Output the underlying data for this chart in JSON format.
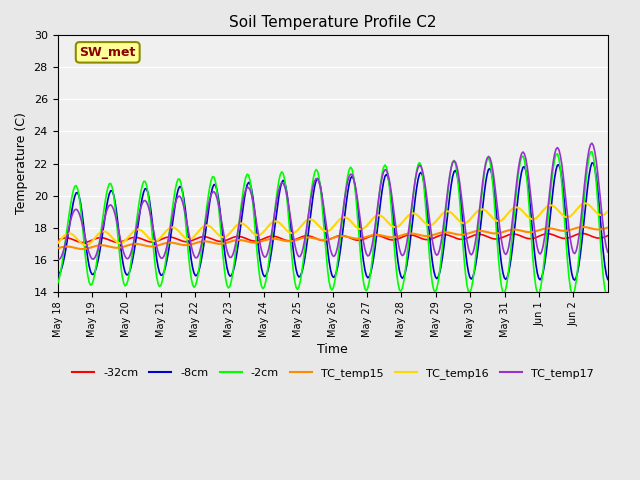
{
  "title": "Soil Temperature Profile C2",
  "xlabel": "Time",
  "ylabel": "Temperature (C)",
  "ylim": [
    14,
    30
  ],
  "yticks": [
    14,
    16,
    18,
    20,
    22,
    24,
    26,
    28,
    30
  ],
  "annotation": "SW_met",
  "annotation_color": "#8B0000",
  "annotation_bg": "#FFFF99",
  "annotation_border": "#8B8B00",
  "bg_color": "#E8E8E8",
  "plot_bg": "#F0F0F0",
  "series_colors": {
    "-32cm": "#FF0000",
    "-8cm": "#0000CC",
    "-2cm": "#00FF00",
    "TC_temp15": "#FF8C00",
    "TC_temp16": "#FFD700",
    "TC_temp17": "#9932CC"
  },
  "x_tick_labels": [
    "May 18",
    "May 19",
    "May 20",
    "May 21",
    "May 22",
    "May 23",
    "May 24",
    "May 25",
    "May 26",
    "May 27",
    "May 28",
    "May 29",
    "May 30",
    "May 31",
    "Jun 1",
    "Jun 2"
  ]
}
